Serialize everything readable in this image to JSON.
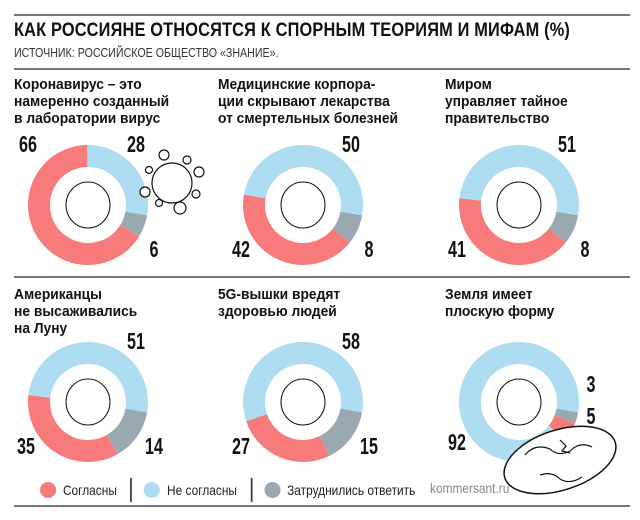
{
  "header": {
    "title": "КАК РОССИЯНЕ ОТНОСЯТСЯ К СПОРНЫМ ТЕОРИЯМ И МИФАМ (%)",
    "subtitle": "ИСТОЧНИК: РОССИЙСКОЕ ОБЩЕСТВО «ЗНАНИЕ»."
  },
  "colors": {
    "agree": "#f77b7b",
    "disagree": "#aedcf0",
    "unsure": "#9aa8b0"
  },
  "legend": {
    "agree": "Согласны",
    "disagree": "Не согласны",
    "unsure": "Затруднились ответить"
  },
  "brand": "kommersant.ru",
  "decorations": [
    "virus-icon",
    "globe-icon"
  ],
  "chart_data": {
    "type": "pie",
    "unit": "%",
    "series_names": [
      "Согласны",
      "Не согласны",
      "Затруднились ответить"
    ],
    "charts": [
      {
        "title": "Коронавирус – это\nнамеренно созданный\nв лаборатории вирус",
        "agree": 66,
        "disagree": 28,
        "unsure": 6
      },
      {
        "title": "Медицинские корпора-\nции скрывают лекарства\nот смертельных болезней",
        "agree": 42,
        "disagree": 50,
        "unsure": 8
      },
      {
        "title": "Миром\nуправляет тайное\nправительство",
        "agree": 41,
        "disagree": 51,
        "unsure": 8
      },
      {
        "title": "Американцы\nне высаживались\nна Луну",
        "agree": 35,
        "disagree": 51,
        "unsure": 14
      },
      {
        "title": "5G-вышки вредят\nздоровью людей",
        "agree": 27,
        "disagree": 58,
        "unsure": 15
      },
      {
        "title": "Земля имеет\nплоскую форму",
        "agree": 5,
        "disagree": 92,
        "unsure": 3
      }
    ]
  }
}
